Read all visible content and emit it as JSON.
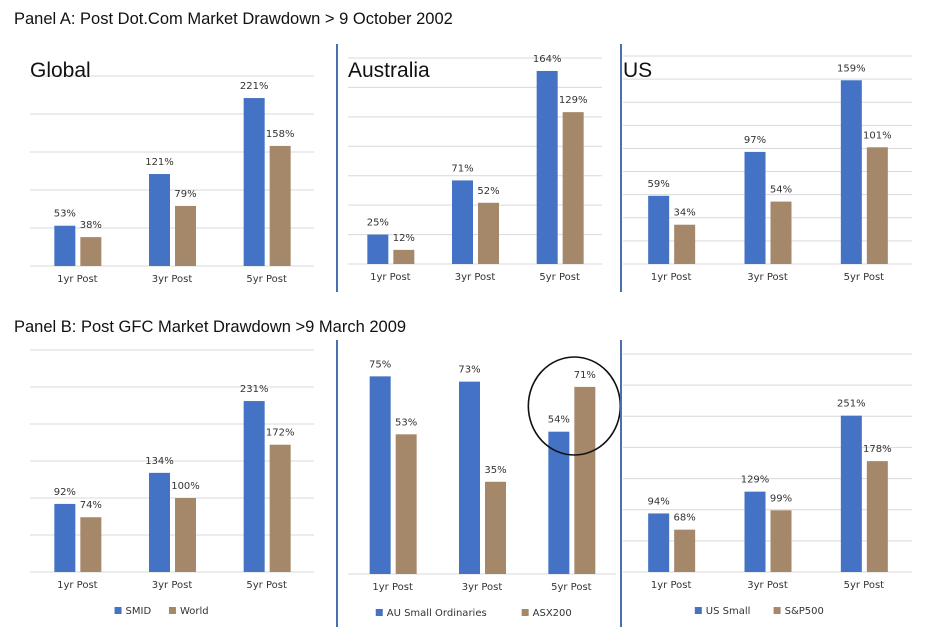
{
  "panel_a_title": "Panel A: Post Dot.Com Market Drawdown > 9 October 2002",
  "panel_b_title": "Panel B: Post GFC Market Drawdown >9 March 2009",
  "colors": {
    "small": "#4472c4",
    "large": "#a5876a",
    "grid": "#d9d9d9",
    "divider": "#4a6fb0"
  },
  "chart_data": [
    {
      "type": "bar",
      "title": "Global",
      "categories": [
        "1yr Post",
        "3yr Post",
        "5yr Post"
      ],
      "series": [
        {
          "name": "",
          "values": [
            53,
            121,
            221
          ],
          "labels": [
            "53%",
            "121%",
            "221%"
          ]
        },
        {
          "name": "",
          "values": [
            38,
            79,
            158
          ],
          "labels": [
            "38%",
            "79%",
            "158%"
          ]
        }
      ],
      "ylim": [
        0,
        250
      ],
      "grid": true
    },
    {
      "type": "bar",
      "title": "Australia",
      "categories": [
        "1yr Post",
        "3yr Post",
        "5yr Post"
      ],
      "series": [
        {
          "name": "",
          "values": [
            25,
            71,
            164
          ],
          "labels": [
            "25%",
            "71%",
            "164%"
          ]
        },
        {
          "name": "",
          "values": [
            12,
            52,
            129
          ],
          "labels": [
            "12%",
            "52%",
            "129%"
          ]
        }
      ],
      "ylim": [
        0,
        175
      ],
      "grid": true
    },
    {
      "type": "bar",
      "title": "US",
      "categories": [
        "1yr Post",
        "3yr Post",
        "5yr Post"
      ],
      "series": [
        {
          "name": "",
          "values": [
            59,
            97,
            159
          ],
          "labels": [
            "59%",
            "97%",
            "159%"
          ]
        },
        {
          "name": "",
          "values": [
            34,
            54,
            101
          ],
          "labels": [
            "34%",
            "54%",
            "101%"
          ]
        }
      ],
      "ylim": [
        0,
        180
      ],
      "grid": true
    },
    {
      "type": "bar",
      "title": "",
      "categories": [
        "1yr Post",
        "3yr Post",
        "5yr Post"
      ],
      "series": [
        {
          "name": "SMID",
          "values": [
            92,
            134,
            231
          ],
          "labels": [
            "92%",
            "134%",
            "231%"
          ]
        },
        {
          "name": "World",
          "values": [
            74,
            100,
            172
          ],
          "labels": [
            "74%",
            "100%",
            "172%"
          ]
        }
      ],
      "ylim": [
        0,
        300
      ],
      "grid": true,
      "legend": "bottom"
    },
    {
      "type": "bar",
      "title": "",
      "categories": [
        "1yr Post",
        "3yr Post",
        "5yr Post"
      ],
      "series": [
        {
          "name": "AU Small Ordinaries",
          "values": [
            75,
            73,
            54
          ],
          "labels": [
            "75%",
            "73%",
            "54%"
          ]
        },
        {
          "name": "ASX200",
          "values": [
            53,
            35,
            71
          ],
          "labels": [
            "53%",
            "35%",
            "71%"
          ]
        }
      ],
      "ylim": [
        0,
        85
      ],
      "grid": false,
      "legend": "bottom",
      "annotation": "circle around 5yr Post"
    },
    {
      "type": "bar",
      "title": "",
      "categories": [
        "1yr Post",
        "3yr Post",
        "5yr Post"
      ],
      "series": [
        {
          "name": "US Small",
          "values": [
            94,
            129,
            251
          ],
          "labels": [
            "94%",
            "129%",
            "251%"
          ]
        },
        {
          "name": "S&P500",
          "values": [
            68,
            99,
            178
          ],
          "labels": [
            "68%",
            "99%",
            "178%"
          ]
        }
      ],
      "ylim": [
        0,
        350
      ],
      "grid": true,
      "legend": "bottom"
    }
  ]
}
